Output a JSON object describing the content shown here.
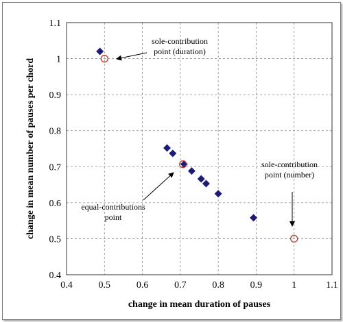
{
  "chart_data": {
    "type": "scatter",
    "xlabel": "change in mean duration of pauses",
    "ylabel": "change in mean number of pauses per chord",
    "xlim": [
      0.4,
      1.1
    ],
    "ylim": [
      0.4,
      1.1
    ],
    "xticks": [
      "0.4",
      "0.5",
      "0.6",
      "0.7",
      "0.8",
      "0.9",
      "1",
      "1.1"
    ],
    "yticks": [
      "0.4",
      "0.5",
      "0.6",
      "0.7",
      "0.8",
      "0.9",
      "1",
      "1.1"
    ],
    "grid": true,
    "series": [
      {
        "marker": "diamond",
        "color": "#1c1c78",
        "points": [
          [
            0.488,
            1.02
          ],
          [
            0.665,
            0.752
          ],
          [
            0.68,
            0.737
          ],
          [
            0.71,
            0.707
          ],
          [
            0.73,
            0.688
          ],
          [
            0.755,
            0.666
          ],
          [
            0.768,
            0.653
          ],
          [
            0.8,
            0.625
          ],
          [
            0.893,
            0.558
          ]
        ]
      },
      {
        "marker": "open-circle",
        "color": "#c0392b",
        "points": [
          [
            0.5,
            1.0
          ],
          [
            0.707,
            0.707
          ],
          [
            1.0,
            0.5
          ]
        ]
      }
    ],
    "annotations": [
      {
        "lines": [
          "sole-contribution",
          "point (duration)"
        ],
        "target": [
          0.5,
          1.0
        ]
      },
      {
        "lines": [
          "equal-contributions",
          "point"
        ],
        "target": [
          0.707,
          0.707
        ]
      },
      {
        "lines": [
          "sole-contribution",
          "point (number)"
        ],
        "target": [
          1.0,
          0.5
        ]
      }
    ]
  }
}
